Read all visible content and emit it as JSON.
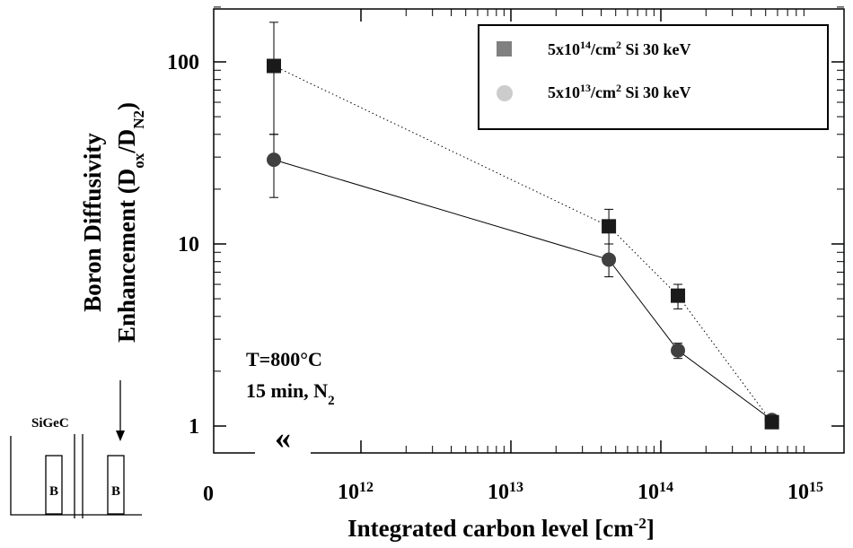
{
  "chart_data": {
    "type": "scatter",
    "x_scale": "log",
    "y_scale": "log",
    "xlim": [
      100000000000,
      1000000000000000
    ],
    "ylim": [
      0.7,
      200
    ],
    "xlabel": "Integrated carbon level [cm",
    "xlabel_sup": "-2",
    "xlabel_suffix": "]",
    "ylabel_line1": "Boron Diffusivity",
    "ylabel_line2": "Enhancement (D",
    "ylabel_sub1": "ox",
    "ylabel_mid": "/D",
    "ylabel_sub2": "N2",
    "ylabel_end": ")",
    "x_zero_label": "0",
    "x_ticks": [
      {
        "value": 1000000000000,
        "base": "10",
        "exp": "12"
      },
      {
        "value": 10000000000000,
        "base": "10",
        "exp": "13"
      },
      {
        "value": 100000000000000,
        "base": "10",
        "exp": "14"
      },
      {
        "value": 1000000000000000,
        "base": "10",
        "exp": "15"
      }
    ],
    "y_ticks": [
      {
        "value": 1,
        "label": "1"
      },
      {
        "value": 10,
        "label": "10"
      },
      {
        "value": 100,
        "label": "100"
      }
    ],
    "axis_break_symbol": "«",
    "grid": false,
    "legend_position": "top-right",
    "series": [
      {
        "name": "5x10",
        "name_sup": "14",
        "name_rest": "/cm",
        "name_sup2": "2",
        "name_tail": " Si 30 keV",
        "marker": "square",
        "marker_color": "#1a1a1a",
        "legend_color": "#808080",
        "line_style": "dotted",
        "points": [
          {
            "x": "zero",
            "y": 95,
            "err_low": 40,
            "err_high": 165
          },
          {
            "x": 45000000000000,
            "y": 12.5,
            "err_low": 10,
            "err_high": 15.5
          },
          {
            "x": 130000000000000,
            "y": 5.2,
            "err_low": 4.4,
            "err_high": 6.0
          },
          {
            "x": 550000000000000,
            "y": 1.05,
            "err_low": 1.0,
            "err_high": 1.1
          }
        ]
      },
      {
        "name": "5x10",
        "name_sup": "13",
        "name_rest": "/cm",
        "name_sup2": "2",
        "name_tail": " Si 30 keV",
        "marker": "circle",
        "marker_color": "#404040",
        "legend_color": "#cccccc",
        "line_style": "solid",
        "points": [
          {
            "x": "zero",
            "y": 29,
            "err_low": 18,
            "err_high": 40
          },
          {
            "x": 45000000000000,
            "y": 8.2,
            "err_low": 6.6,
            "err_high": 10
          },
          {
            "x": 130000000000000,
            "y": 2.6,
            "err_low": 2.35,
            "err_high": 2.85
          },
          {
            "x": 550000000000000,
            "y": 1.08,
            "err_low": 1.02,
            "err_high": 1.14
          }
        ]
      }
    ]
  },
  "annotation": {
    "line1": "T=800°C",
    "line2_prefix": "15 min, N",
    "line2_sub": "2"
  },
  "inset": {
    "title": "SiGeC",
    "box_label_1": "B",
    "box_label_2": "B"
  }
}
